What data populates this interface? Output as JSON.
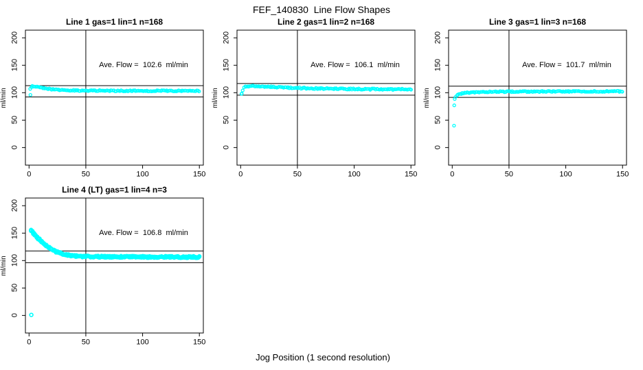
{
  "figure": {
    "title": "FEF_140830  Line Flow Shapes",
    "xlabel": "Jog Position (1 second resolution)",
    "background": "#ffffff",
    "axis_color": "#000000",
    "point_color": "#00ffff"
  },
  "chart_data": [
    {
      "type": "scatter",
      "title": "Line 1 gas=1 lin=1 n=168",
      "annotation": "Ave. Flow =  102.6  ml/min",
      "avg_flow": 102.6,
      "ylabel": "ml/min",
      "xlim": [
        -3.2,
        153.5
      ],
      "ylim": [
        -32,
        214
      ],
      "xticks": [
        0,
        50,
        100,
        150
      ],
      "yticks": [
        0,
        50,
        100,
        150,
        200
      ],
      "hlines": [
        112.9,
        92.3
      ],
      "vline": 50,
      "band": 1.6,
      "point_r": 2.0,
      "per_x": 1,
      "keypoints": [
        [
          1,
          107
        ],
        [
          2,
          110.5
        ],
        [
          3,
          112
        ],
        [
          6,
          111.5
        ],
        [
          10,
          109.5
        ],
        [
          15,
          107.5
        ],
        [
          20,
          106.3
        ],
        [
          28,
          105
        ],
        [
          40,
          104.2
        ],
        [
          55,
          103.8
        ],
        [
          80,
          103.5
        ],
        [
          110,
          103.4
        ],
        [
          150,
          103.3
        ]
      ],
      "outliers": [
        [
          1.2,
          96
        ]
      ]
    },
    {
      "type": "scatter",
      "title": "Line 2 gas=1 lin=2 n=168",
      "annotation": "Ave. Flow =  106.1  ml/min",
      "avg_flow": 106.1,
      "ylabel": "ml/min",
      "xlim": [
        -3.2,
        153.5
      ],
      "ylim": [
        -32,
        214
      ],
      "xticks": [
        0,
        50,
        100,
        150
      ],
      "yticks": [
        0,
        50,
        100,
        150,
        200
      ],
      "hlines": [
        116.7,
        95.5
      ],
      "vline": 50,
      "band": 2.0,
      "point_r": 2.0,
      "per_x": 1,
      "keypoints": [
        [
          1,
          99
        ],
        [
          2,
          105
        ],
        [
          3,
          109.5
        ],
        [
          5,
          111.8
        ],
        [
          8,
          112.3
        ],
        [
          14,
          112
        ],
        [
          22,
          111.2
        ],
        [
          32,
          110.2
        ],
        [
          45,
          109
        ],
        [
          60,
          108
        ],
        [
          80,
          107.2
        ],
        [
          110,
          106.5
        ],
        [
          150,
          106
        ]
      ],
      "outliers": [
        [
          1,
          98.5
        ]
      ]
    },
    {
      "type": "scatter",
      "title": "Line 3 gas=1 lin=3 n=168",
      "annotation": "Ave. Flow =  101.7  ml/min",
      "avg_flow": 101.7,
      "ylabel": "ml/min",
      "xlim": [
        -3.2,
        153.5
      ],
      "ylim": [
        -32,
        214
      ],
      "xticks": [
        0,
        50,
        100,
        150
      ],
      "yticks": [
        0,
        50,
        100,
        150,
        200
      ],
      "hlines": [
        111.9,
        91.5
      ],
      "vline": 50,
      "band": 1.6,
      "point_r": 2.0,
      "per_x": 1,
      "keypoints": [
        [
          3,
          92.5
        ],
        [
          4,
          95
        ],
        [
          6,
          97.5
        ],
        [
          9,
          99
        ],
        [
          13,
          100
        ],
        [
          20,
          100.8
        ],
        [
          30,
          101.4
        ],
        [
          50,
          101.9
        ],
        [
          80,
          102.2
        ],
        [
          120,
          102.4
        ],
        [
          150,
          102.5
        ]
      ],
      "outliers": [
        [
          1.6,
          40
        ],
        [
          1.8,
          77
        ],
        [
          2.2,
          88.5
        ]
      ]
    },
    {
      "type": "scatter",
      "title": "Line 4 (LT) gas=1 lin=4 n=3",
      "annotation": "Ave. Flow =  106.8  ml/min",
      "avg_flow": 106.8,
      "ylabel": "ml/min",
      "xlim": [
        -3.2,
        153.5
      ],
      "ylim": [
        -32,
        214
      ],
      "xticks": [
        0,
        50,
        100,
        150
      ],
      "yticks": [
        0,
        50,
        100,
        150,
        200
      ],
      "hlines": [
        117.5,
        96.1
      ],
      "vline": 50,
      "band": 2.4,
      "point_r": 2.4,
      "per_x": 2,
      "keypoints": [
        [
          2,
          155
        ],
        [
          3,
          152.5
        ],
        [
          4,
          150
        ],
        [
          5,
          147.5
        ],
        [
          6,
          145
        ],
        [
          8,
          140.5
        ],
        [
          10,
          136.5
        ],
        [
          12,
          132.5
        ],
        [
          14,
          129
        ],
        [
          17,
          124.5
        ],
        [
          20,
          120.5
        ],
        [
          23,
          117
        ],
        [
          26,
          114.5
        ],
        [
          30,
          111.8
        ],
        [
          34,
          110
        ],
        [
          38,
          108.8
        ],
        [
          44,
          107.8
        ],
        [
          52,
          107.2
        ],
        [
          65,
          107
        ],
        [
          85,
          106.8
        ],
        [
          110,
          106.6
        ],
        [
          150,
          106.4
        ]
      ],
      "outliers": [
        [
          2,
          1
        ]
      ]
    }
  ]
}
